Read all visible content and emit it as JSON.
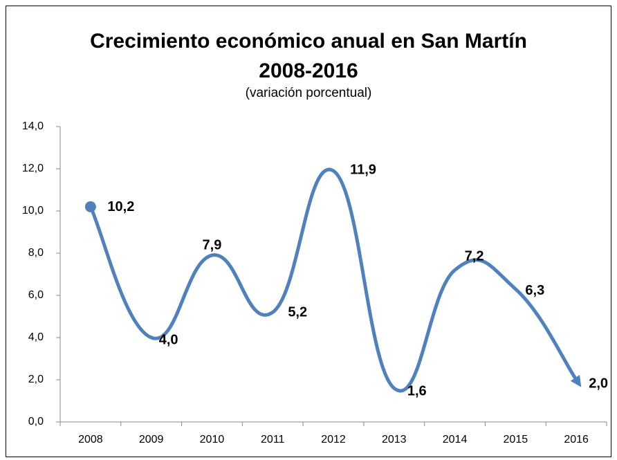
{
  "chart_data": {
    "type": "line",
    "title": "Crecimiento económico anual en San Martín\n2008-2016",
    "subtitle": "(variación porcentual)",
    "categories": [
      "2008",
      "2009",
      "2010",
      "2011",
      "2012",
      "2013",
      "2014",
      "2015",
      "2016"
    ],
    "series": [
      {
        "name": "Crecimiento",
        "color": "#4f81bd",
        "values": [
          10.2,
          4.0,
          7.9,
          5.2,
          11.9,
          1.6,
          7.2,
          6.3,
          2.0
        ],
        "value_labels": [
          "10,2",
          "4,0",
          "7,9",
          "5,2",
          "11,9",
          "1,6",
          "7,2",
          "6,3",
          "2,0"
        ]
      }
    ],
    "ylim": [
      0,
      14
    ],
    "yticks": [
      {
        "value": 0,
        "label": "0,0"
      },
      {
        "value": 2,
        "label": "2,0"
      },
      {
        "value": 4,
        "label": "4,0"
      },
      {
        "value": 6,
        "label": "6,0"
      },
      {
        "value": 8,
        "label": "8,0"
      },
      {
        "value": 10,
        "label": "10,0"
      },
      {
        "value": 12,
        "label": "12,0"
      },
      {
        "value": 14,
        "label": "14,0"
      }
    ],
    "grid": false
  }
}
